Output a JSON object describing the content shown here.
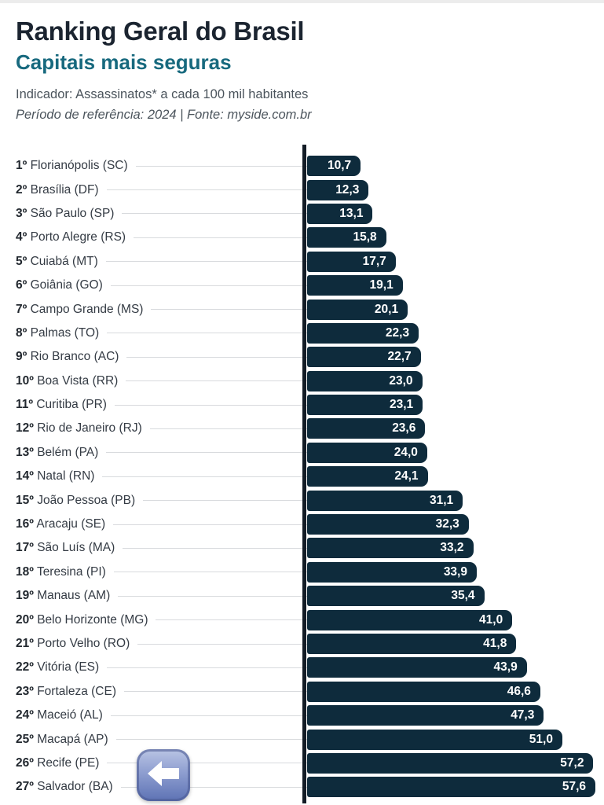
{
  "chart_data": {
    "type": "bar",
    "orientation": "horizontal",
    "title": "Ranking Geral do Brasil",
    "subtitle": "Capitais mais seguras",
    "indicator": "Indicador: Assassinatos* a cada 100 mil habitantes",
    "reference": "Período de referência: 2024 | Fonte: myside.com.br",
    "value_format": "comma-decimal",
    "xlim": [
      0,
      57.6
    ],
    "grid": false,
    "legend": "none",
    "colors": {
      "bar": "#0e2b3c",
      "axis": "#131c26",
      "title": "#1b2430",
      "subtitle_teal": "#17697e",
      "leader_line": "#d8dadd",
      "value_text": "#ffffff"
    },
    "rows": [
      {
        "rank": "1º",
        "city": "Florianópolis (SC)",
        "value": 10.7,
        "label": "10,7"
      },
      {
        "rank": "2º",
        "city": "Brasília (DF)",
        "value": 12.3,
        "label": "12,3"
      },
      {
        "rank": "3º",
        "city": "São Paulo (SP)",
        "value": 13.1,
        "label": "13,1"
      },
      {
        "rank": "4º",
        "city": "Porto Alegre (RS)",
        "value": 15.8,
        "label": "15,8"
      },
      {
        "rank": "5º",
        "city": "Cuiabá (MT)",
        "value": 17.7,
        "label": "17,7"
      },
      {
        "rank": "6º",
        "city": "Goiânia (GO)",
        "value": 19.1,
        "label": "19,1"
      },
      {
        "rank": "7º",
        "city": "Campo Grande (MS)",
        "value": 20.1,
        "label": "20,1"
      },
      {
        "rank": "8º",
        "city": "Palmas (TO)",
        "value": 22.3,
        "label": "22,3"
      },
      {
        "rank": "9º",
        "city": "Rio Branco (AC)",
        "value": 22.7,
        "label": "22,7"
      },
      {
        "rank": "10º",
        "city": "Boa Vista (RR)",
        "value": 23.0,
        "label": "23,0"
      },
      {
        "rank": "11º",
        "city": "Curitiba (PR)",
        "value": 23.1,
        "label": "23,1"
      },
      {
        "rank": "12º",
        "city": "Rio de Janeiro (RJ)",
        "value": 23.6,
        "label": "23,6"
      },
      {
        "rank": "13º",
        "city": "Belém (PA)",
        "value": 24.0,
        "label": "24,0"
      },
      {
        "rank": "14º",
        "city": "Natal (RN)",
        "value": 24.1,
        "label": "24,1"
      },
      {
        "rank": "15º",
        "city": "João Pessoa (PB)",
        "value": 31.1,
        "label": "31,1"
      },
      {
        "rank": "16º",
        "city": "Aracaju (SE)",
        "value": 32.3,
        "label": "32,3"
      },
      {
        "rank": "17º",
        "city": "São Luís (MA)",
        "value": 33.2,
        "label": "33,2"
      },
      {
        "rank": "18º",
        "city": "Teresina (PI)",
        "value": 33.9,
        "label": "33,9"
      },
      {
        "rank": "19º",
        "city": "Manaus (AM)",
        "value": 35.4,
        "label": "35,4"
      },
      {
        "rank": "20º",
        "city": "Belo Horizonte (MG)",
        "value": 41.0,
        "label": "41,0"
      },
      {
        "rank": "21º",
        "city": "Porto Velho (RO)",
        "value": 41.8,
        "label": "41,8"
      },
      {
        "rank": "22º",
        "city": "Vitória (ES)",
        "value": 43.9,
        "label": "43,9"
      },
      {
        "rank": "23º",
        "city": "Fortaleza (CE)",
        "value": 46.6,
        "label": "46,6"
      },
      {
        "rank": "24º",
        "city": "Maceió (AL)",
        "value": 47.3,
        "label": "47,3"
      },
      {
        "rank": "25º",
        "city": "Macapá (AP)",
        "value": 51.0,
        "label": "51,0"
      },
      {
        "rank": "26º",
        "city": "Recife (PE)",
        "value": 57.2,
        "label": "57,2"
      },
      {
        "rank": "27º",
        "city": "Salvador (BA)",
        "value": 57.6,
        "label": "57,6"
      }
    ]
  },
  "decorations": {
    "sticker_icon": "left-arrow-emoji",
    "sticker_colors": {
      "top": "#bac5e4",
      "bottom": "#5d72b4",
      "arrow": "#ffffff"
    }
  }
}
